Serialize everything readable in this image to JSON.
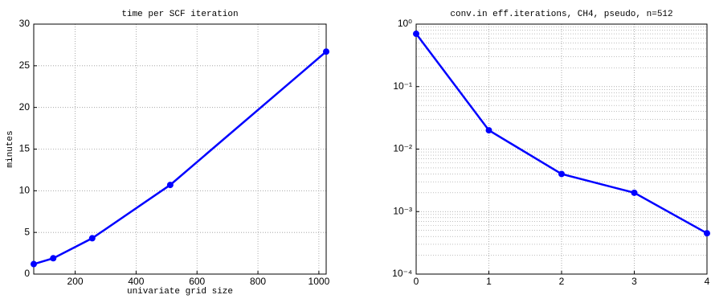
{
  "chart_data": [
    {
      "type": "line",
      "title": "time per SCF iteration",
      "xlabel": "univariate grid size",
      "ylabel": "minutes",
      "x": [
        64,
        128,
        256,
        512,
        1024
      ],
      "series": [
        {
          "color": "#0000ff",
          "values": [
            1.2,
            1.9,
            4.3,
            10.7,
            26.7
          ]
        }
      ],
      "xlim": [
        64,
        1024
      ],
      "xticks": [
        200,
        400,
        600,
        800,
        1000
      ],
      "ylim": [
        0,
        30
      ],
      "yticks": [
        0,
        5,
        10,
        15,
        20,
        25,
        30
      ],
      "grid": true,
      "log_y": false
    },
    {
      "type": "line",
      "title": "conv.in eff.iterations, CH4, pseudo, n=512",
      "x": [
        0,
        1,
        2,
        3,
        4
      ],
      "series": [
        {
          "color": "#0000ff",
          "values": [
            0.7,
            0.02,
            0.004,
            0.002,
            0.00045
          ]
        }
      ],
      "xlim": [
        0,
        4
      ],
      "xticks": [
        0,
        1,
        2,
        3,
        4
      ],
      "ylim": [
        0.0001,
        1
      ],
      "yticks": [
        {
          "value": 0.0001,
          "label": "10⁻⁴"
        },
        {
          "value": 0.001,
          "label": "10⁻³"
        },
        {
          "value": 0.01,
          "label": "10⁻²"
        },
        {
          "value": 0.1,
          "label": "10⁻¹"
        },
        {
          "value": 1,
          "label": "10⁰"
        }
      ],
      "grid": true,
      "log_y": true,
      "minor_grid": true
    }
  ]
}
